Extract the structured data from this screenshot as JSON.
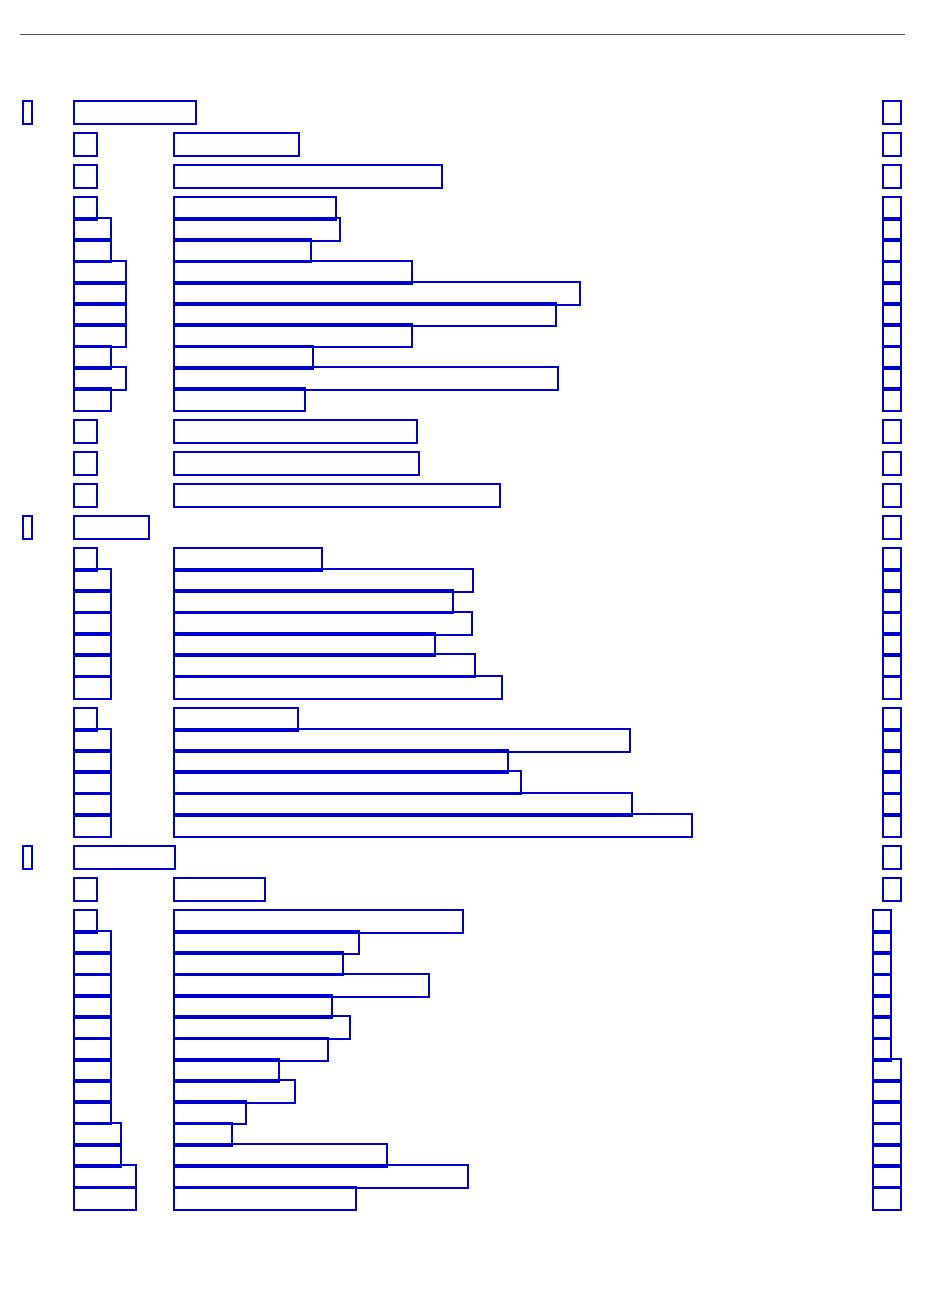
{
  "page": {
    "outline_color": "#0000cc",
    "rule_color": "#555555"
  }
}
